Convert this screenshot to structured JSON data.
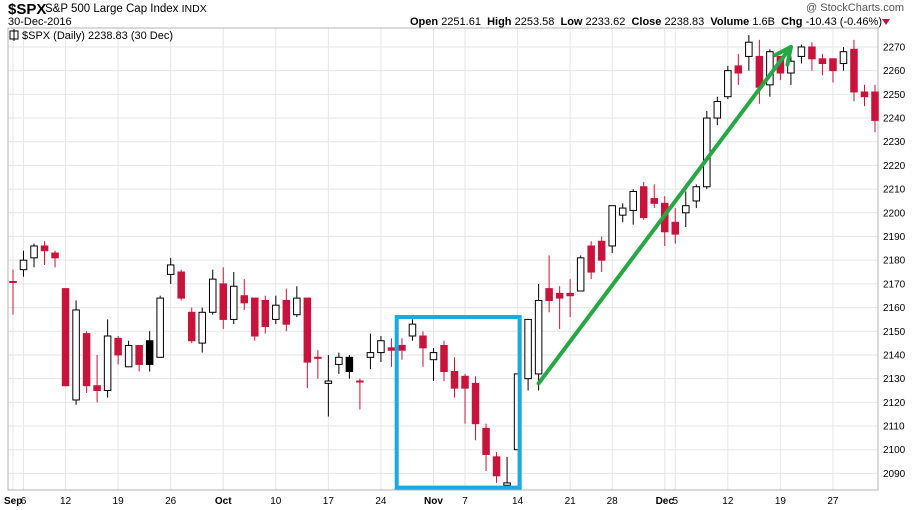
{
  "header": {
    "symbol": "$SPX",
    "name": "S&P 500 Large Cap Index",
    "exchange": "INDX",
    "date": "30-Dec-2016",
    "watermark": "@ StockCharts.com",
    "open_label": "Open",
    "open": "2251.61",
    "high_label": "High",
    "high": "2253.58",
    "low_label": "Low",
    "low": "2233.62",
    "close_label": "Close",
    "close": "2238.83",
    "volume_label": "Volume",
    "volume": "1.6B",
    "chg_label": "Chg",
    "chg": "-10.43 (-0.46%)"
  },
  "legend": "$SPX (Daily) 2238.83 (30 Dec)",
  "colors": {
    "up_fill": "#ffffff",
    "up_stroke": "#000000",
    "down": "#c8143c",
    "grid": "#e6e6e6",
    "highlight_box": "#1ba9e1",
    "arrow": "#27a844",
    "down_arrow": "#c0143c"
  },
  "chart_data": {
    "type": "candlestick",
    "title": "$SPX (Daily) 2238.83 (30 Dec)",
    "ylim": [
      2083,
      2278
    ],
    "y_ticks": [
      2090,
      2100,
      2110,
      2120,
      2130,
      2140,
      2150,
      2160,
      2170,
      2180,
      2190,
      2200,
      2210,
      2220,
      2230,
      2240,
      2250,
      2260,
      2270
    ],
    "y_axis_side": "right",
    "x_ticks": [
      {
        "label": "Sep",
        "index": 0,
        "bold": true
      },
      {
        "label": "6",
        "index": 1
      },
      {
        "label": "12",
        "index": 5
      },
      {
        "label": "19",
        "index": 10
      },
      {
        "label": "26",
        "index": 15
      },
      {
        "label": "Oct",
        "index": 20,
        "bold": true
      },
      {
        "label": "10",
        "index": 25
      },
      {
        "label": "17",
        "index": 30
      },
      {
        "label": "24",
        "index": 35
      },
      {
        "label": "Nov",
        "index": 40,
        "bold": true
      },
      {
        "label": "7",
        "index": 43
      },
      {
        "label": "14",
        "index": 48
      },
      {
        "label": "21",
        "index": 53
      },
      {
        "label": "28",
        "index": 57
      },
      {
        "label": "Dec",
        "index": 62,
        "bold": true
      },
      {
        "label": "5",
        "index": 63
      },
      {
        "label": "12",
        "index": 68
      },
      {
        "label": "19",
        "index": 73
      },
      {
        "label": "27",
        "index": 78
      }
    ],
    "candles": [
      {
        "o": 2171,
        "h": 2176,
        "l": 2157,
        "c": 2171,
        "dir": "down"
      },
      {
        "o": 2176,
        "h": 2184,
        "l": 2173,
        "c": 2180,
        "dir": "up"
      },
      {
        "o": 2181,
        "h": 2187,
        "l": 2177,
        "c": 2186,
        "dir": "up"
      },
      {
        "o": 2186,
        "h": 2188,
        "l": 2178,
        "c": 2184,
        "dir": "down"
      },
      {
        "o": 2183,
        "h": 2184,
        "l": 2177,
        "c": 2181,
        "dir": "down"
      },
      {
        "o": 2168,
        "h": 2168,
        "l": 2127,
        "c": 2127,
        "dir": "down"
      },
      {
        "o": 2121,
        "h": 2163,
        "l": 2119,
        "c": 2159,
        "dir": "up"
      },
      {
        "o": 2149,
        "h": 2150,
        "l": 2124,
        "c": 2127,
        "dir": "down"
      },
      {
        "o": 2127,
        "h": 2140,
        "l": 2120,
        "c": 2125,
        "dir": "down"
      },
      {
        "o": 2125,
        "h": 2155,
        "l": 2122,
        "c": 2148,
        "dir": "up"
      },
      {
        "o": 2147,
        "h": 2148,
        "l": 2136,
        "c": 2140,
        "dir": "down"
      },
      {
        "o": 2135,
        "h": 2146,
        "l": 2135,
        "c": 2144,
        "dir": "up"
      },
      {
        "o": 2144,
        "h": 2144,
        "l": 2133,
        "c": 2136,
        "dir": "down"
      },
      {
        "o": 2136,
        "h": 2150,
        "l": 2133,
        "c": 2146,
        "dir": "black"
      },
      {
        "o": 2139,
        "h": 2165,
        "l": 2139,
        "c": 2164,
        "dir": "up"
      },
      {
        "o": 2174,
        "h": 2181,
        "l": 2170,
        "c": 2178,
        "dir": "up"
      },
      {
        "o": 2175,
        "h": 2176,
        "l": 2163,
        "c": 2164,
        "dir": "down"
      },
      {
        "o": 2158,
        "h": 2160,
        "l": 2145,
        "c": 2146,
        "dir": "down"
      },
      {
        "o": 2145,
        "h": 2160,
        "l": 2141,
        "c": 2158,
        "dir": "up"
      },
      {
        "o": 2158,
        "h": 2176,
        "l": 2157,
        "c": 2172,
        "dir": "up"
      },
      {
        "o": 2170,
        "h": 2177,
        "l": 2151,
        "c": 2155,
        "dir": "down"
      },
      {
        "o": 2155,
        "h": 2175,
        "l": 2153,
        "c": 2169,
        "dir": "up"
      },
      {
        "o": 2165,
        "h": 2172,
        "l": 2159,
        "c": 2162,
        "dir": "down"
      },
      {
        "o": 2164,
        "h": 2164,
        "l": 2146,
        "c": 2148,
        "dir": "down"
      },
      {
        "o": 2152,
        "h": 2165,
        "l": 2149,
        "c": 2163,
        "dir": "down"
      },
      {
        "o": 2155,
        "h": 2165,
        "l": 2153,
        "c": 2161,
        "dir": "up"
      },
      {
        "o": 2163,
        "h": 2168,
        "l": 2150,
        "c": 2153,
        "dir": "down"
      },
      {
        "o": 2157,
        "h": 2169,
        "l": 2156,
        "c": 2164,
        "dir": "up"
      },
      {
        "o": 2164,
        "h": 2164,
        "l": 2126,
        "c": 2137,
        "dir": "down"
      },
      {
        "o": 2139,
        "h": 2142,
        "l": 2130,
        "c": 2139,
        "dir": "down"
      },
      {
        "o": 2129,
        "h": 2140,
        "l": 2114,
        "c": 2128,
        "dir": "up"
      },
      {
        "o": 2136,
        "h": 2141,
        "l": 2132,
        "c": 2139,
        "dir": "up"
      },
      {
        "o": 2139,
        "h": 2140,
        "l": 2130,
        "c": 2133,
        "dir": "black"
      },
      {
        "o": 2129,
        "h": 2130,
        "l": 2117,
        "c": 2129,
        "dir": "down"
      },
      {
        "o": 2139,
        "h": 2149,
        "l": 2134,
        "c": 2141,
        "dir": "up"
      },
      {
        "o": 2141,
        "h": 2148,
        "l": 2137,
        "c": 2146,
        "dir": "up"
      },
      {
        "o": 2142,
        "h": 2147,
        "l": 2135,
        "c": 2143,
        "dir": "down"
      },
      {
        "o": 2144,
        "h": 2147,
        "l": 2138,
        "c": 2142,
        "dir": "down"
      },
      {
        "o": 2148,
        "h": 2155,
        "l": 2146,
        "c": 2153,
        "dir": "up"
      },
      {
        "o": 2148,
        "h": 2150,
        "l": 2135,
        "c": 2143,
        "dir": "down"
      },
      {
        "o": 2138,
        "h": 2143,
        "l": 2129,
        "c": 2141,
        "dir": "up"
      },
      {
        "o": 2144,
        "h": 2146,
        "l": 2129,
        "c": 2133,
        "dir": "down"
      },
      {
        "o": 2133,
        "h": 2139,
        "l": 2122,
        "c": 2126,
        "dir": "down"
      },
      {
        "o": 2131,
        "h": 2132,
        "l": 2111,
        "c": 2126,
        "dir": "down"
      },
      {
        "o": 2128,
        "h": 2131,
        "l": 2104,
        "c": 2111,
        "dir": "down"
      },
      {
        "o": 2109,
        "h": 2111,
        "l": 2091,
        "c": 2098,
        "dir": "down"
      },
      {
        "o": 2097,
        "h": 2099,
        "l": 2086,
        "c": 2089,
        "dir": "down"
      },
      {
        "o": 2085,
        "h": 2097,
        "l": 2084,
        "c": 2086,
        "dir": "up"
      },
      {
        "o": 2100,
        "h": 2132,
        "l": 2100,
        "c": 2132,
        "dir": "up"
      },
      {
        "o": 2130,
        "h": 2155,
        "l": 2125,
        "c": 2155,
        "dir": "up"
      },
      {
        "o": 2132,
        "h": 2170,
        "l": 2125,
        "c": 2163,
        "dir": "up"
      },
      {
        "o": 2163,
        "h": 2182,
        "l": 2158,
        "c": 2168,
        "dir": "down"
      },
      {
        "o": 2166,
        "h": 2169,
        "l": 2151,
        "c": 2164,
        "dir": "down"
      },
      {
        "o": 2165,
        "h": 2172,
        "l": 2156,
        "c": 2166,
        "dir": "down"
      },
      {
        "o": 2167,
        "h": 2182,
        "l": 2167,
        "c": 2181,
        "dir": "up"
      },
      {
        "o": 2186,
        "h": 2188,
        "l": 2172,
        "c": 2175,
        "dir": "down"
      },
      {
        "o": 2180,
        "h": 2190,
        "l": 2175,
        "c": 2188,
        "dir": "down"
      },
      {
        "o": 2186,
        "h": 2203,
        "l": 2183,
        "c": 2203,
        "dir": "up"
      },
      {
        "o": 2199,
        "h": 2204,
        "l": 2196,
        "c": 2202,
        "dir": "up"
      },
      {
        "o": 2201,
        "h": 2210,
        "l": 2195,
        "c": 2209,
        "dir": "up"
      },
      {
        "o": 2211,
        "h": 2213,
        "l": 2197,
        "c": 2198,
        "dir": "down"
      },
      {
        "o": 2206,
        "h": 2212,
        "l": 2202,
        "c": 2204,
        "dir": "down"
      },
      {
        "o": 2204,
        "h": 2207,
        "l": 2186,
        "c": 2192,
        "dir": "down"
      },
      {
        "o": 2196,
        "h": 2202,
        "l": 2187,
        "c": 2191,
        "dir": "down"
      },
      {
        "o": 2200,
        "h": 2209,
        "l": 2194,
        "c": 2203,
        "dir": "up"
      },
      {
        "o": 2205,
        "h": 2212,
        "l": 2202,
        "c": 2211,
        "dir": "up"
      },
      {
        "o": 2211,
        "h": 2243,
        "l": 2210,
        "c": 2240,
        "dir": "up"
      },
      {
        "o": 2240,
        "h": 2249,
        "l": 2237,
        "c": 2247,
        "dir": "up"
      },
      {
        "o": 2249,
        "h": 2262,
        "l": 2248,
        "c": 2260,
        "dir": "up"
      },
      {
        "o": 2259,
        "h": 2267,
        "l": 2254,
        "c": 2262,
        "dir": "down"
      },
      {
        "o": 2266,
        "h": 2275,
        "l": 2260,
        "c": 2272,
        "dir": "up"
      },
      {
        "o": 2266,
        "h": 2273,
        "l": 2246,
        "c": 2253,
        "dir": "down"
      },
      {
        "o": 2254,
        "h": 2269,
        "l": 2249,
        "c": 2268,
        "dir": "up"
      },
      {
        "o": 2266,
        "h": 2266,
        "l": 2256,
        "c": 2259,
        "dir": "down"
      },
      {
        "o": 2259,
        "h": 2266,
        "l": 2254,
        "c": 2264,
        "dir": "up"
      },
      {
        "o": 2266,
        "h": 2271,
        "l": 2263,
        "c": 2270,
        "dir": "up"
      },
      {
        "o": 2270,
        "h": 2272,
        "l": 2260,
        "c": 2265,
        "dir": "down"
      },
      {
        "o": 2265,
        "h": 2267,
        "l": 2258,
        "c": 2263,
        "dir": "down"
      },
      {
        "o": 2265,
        "h": 2265,
        "l": 2255,
        "c": 2260,
        "dir": "down"
      },
      {
        "o": 2263,
        "h": 2270,
        "l": 2260,
        "c": 2268,
        "dir": "up"
      },
      {
        "o": 2269,
        "h": 2273,
        "l": 2247,
        "c": 2251,
        "dir": "down"
      },
      {
        "o": 2251,
        "h": 2254,
        "l": 2245,
        "c": 2249,
        "dir": "down"
      },
      {
        "o": 2251,
        "h": 2254,
        "l": 2234,
        "c": 2239,
        "dir": "down"
      }
    ],
    "annotations": {
      "highlight_box": {
        "from_index": 37,
        "to_index": 48,
        "y_from": 2084,
        "y_to": 2156
      },
      "arrow": {
        "from_index": 50,
        "from_y": 2128,
        "to_index": 74,
        "to_y": 2270
      }
    }
  }
}
